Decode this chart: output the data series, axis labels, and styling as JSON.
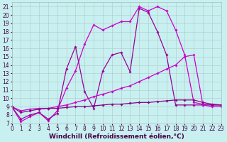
{
  "xlabel": "Windchill (Refroidissement éolien,°C)",
  "bg_color": "#c8f0f0",
  "xlim": [
    0,
    23
  ],
  "ylim": [
    7,
    21.5
  ],
  "xticks": [
    0,
    1,
    2,
    3,
    4,
    5,
    6,
    7,
    8,
    9,
    10,
    11,
    12,
    13,
    14,
    15,
    16,
    17,
    18,
    19,
    20,
    21,
    22,
    23
  ],
  "yticks": [
    7,
    8,
    9,
    10,
    11,
    12,
    13,
    14,
    15,
    16,
    17,
    18,
    19,
    20,
    21
  ],
  "grid_color": "#b0c8c8",
  "tick_fontsize": 5.5,
  "xlabel_fontsize": 6.5,
  "series": [
    {
      "x": [
        0,
        1,
        2,
        3,
        4,
        5,
        6,
        7,
        8,
        9,
        10,
        11,
        12,
        13,
        14,
        15,
        16,
        17,
        18,
        19,
        20,
        21,
        22,
        23
      ],
      "y": [
        9.0,
        7.2,
        7.8,
        8.3,
        7.3,
        8.5,
        11.2,
        13.3,
        16.5,
        18.8,
        18.2,
        18.7,
        19.2,
        19.2,
        21.0,
        20.5,
        21.0,
        20.5,
        18.2,
        15.2,
        9.5,
        9.3,
        9.2,
        9.2
      ],
      "color": "#cc00cc",
      "lw": 0.9
    },
    {
      "x": [
        0,
        1,
        2,
        3,
        4,
        5,
        6,
        7,
        8,
        9,
        10,
        11,
        12,
        13,
        14,
        15,
        16,
        17,
        18,
        19,
        20,
        21,
        22,
        23
      ],
      "y": [
        9.0,
        7.5,
        8.0,
        8.3,
        7.5,
        8.2,
        13.5,
        16.2,
        10.8,
        8.8,
        13.3,
        15.2,
        15.5,
        13.2,
        20.8,
        20.3,
        18.0,
        15.2,
        9.2,
        9.2,
        9.2,
        9.2,
        9.2,
        9.2
      ],
      "color": "#990099",
      "lw": 0.9
    },
    {
      "x": [
        0,
        1,
        2,
        3,
        4,
        5,
        6,
        7,
        8,
        9,
        10,
        11,
        12,
        13,
        14,
        15,
        16,
        17,
        18,
        19,
        20,
        21,
        22,
        23
      ],
      "y": [
        9.0,
        8.5,
        8.7,
        8.8,
        8.8,
        9.0,
        9.2,
        9.5,
        9.8,
        10.2,
        10.5,
        10.8,
        11.2,
        11.5,
        12.0,
        12.5,
        13.0,
        13.5,
        14.0,
        15.0,
        15.2,
        9.2,
        9.0,
        9.0
      ],
      "color": "#cc00cc",
      "lw": 0.9
    },
    {
      "x": [
        0,
        1,
        2,
        3,
        4,
        5,
        6,
        7,
        8,
        9,
        10,
        11,
        12,
        13,
        14,
        15,
        16,
        17,
        18,
        19,
        20,
        21,
        22,
        23
      ],
      "y": [
        9.0,
        8.3,
        8.5,
        8.7,
        8.8,
        8.8,
        8.9,
        9.0,
        9.0,
        9.1,
        9.2,
        9.3,
        9.3,
        9.4,
        9.5,
        9.5,
        9.6,
        9.7,
        9.8,
        9.8,
        9.8,
        9.5,
        9.3,
        9.2
      ],
      "color": "#880088",
      "lw": 0.9
    }
  ]
}
